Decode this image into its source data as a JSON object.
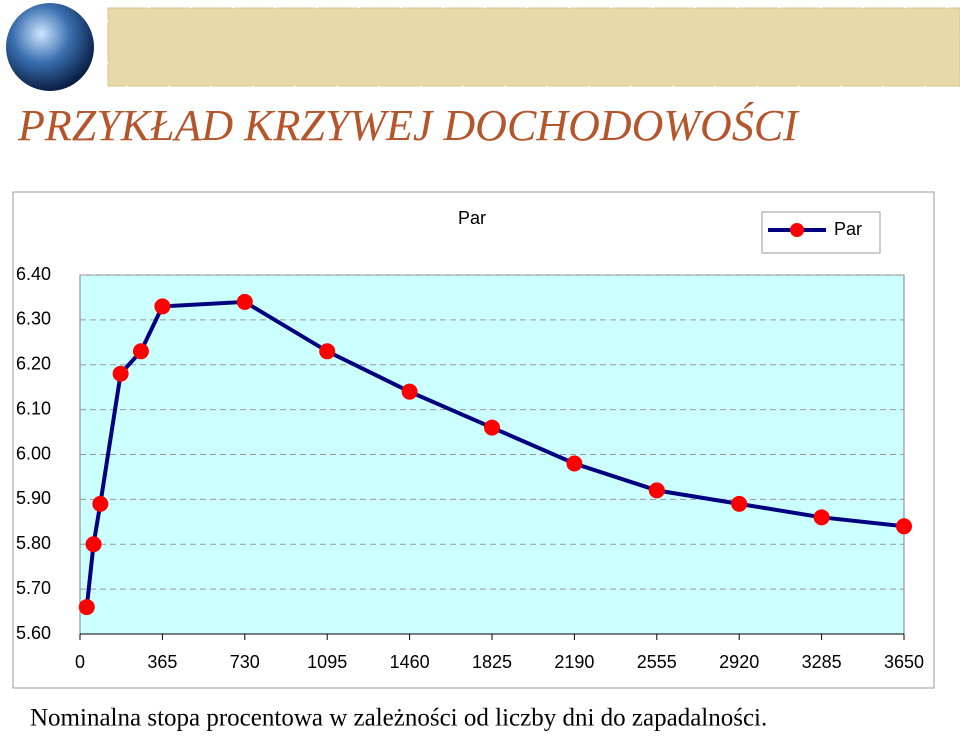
{
  "title": "PRZYKŁAD KRZYWEJ DOCHODOWOŚCI",
  "caption": "Nominalna stopa procentowa w zależności od liczby dni do zapadalności.",
  "chart_data": {
    "type": "line",
    "title": "Par",
    "x": [
      30,
      60,
      90,
      180,
      270,
      365,
      730,
      1095,
      1460,
      1825,
      2190,
      2555,
      2920,
      3285,
      3650
    ],
    "series": [
      {
        "name": "Par",
        "color": "#000080",
        "marker_color": "#ff0000",
        "values": [
          5.66,
          5.8,
          5.89,
          6.18,
          6.23,
          6.33,
          6.34,
          6.23,
          6.14,
          6.06,
          5.98,
          5.92,
          5.89,
          5.86,
          5.84
        ]
      }
    ],
    "xlim": [
      0,
      3650
    ],
    "xticks": [
      0,
      365,
      730,
      1095,
      1460,
      1825,
      2190,
      2555,
      2920,
      3285,
      3650
    ],
    "ylim": [
      5.6,
      6.4
    ],
    "yticks": [
      {
        "value": 5.6,
        "label": "5.60"
      },
      {
        "value": 5.7,
        "label": "5.70"
      },
      {
        "value": 5.8,
        "label": "5.80"
      },
      {
        "value": 5.9,
        "label": "5.90"
      },
      {
        "value": 6.0,
        "label": "6.00"
      },
      {
        "value": 6.1,
        "label": "6.10"
      },
      {
        "value": 6.2,
        "label": "6.20"
      },
      {
        "value": 6.3,
        "label": "6.30"
      },
      {
        "value": 6.4,
        "label": "6.40"
      }
    ],
    "grid": true,
    "legend": "top-right",
    "background": "#ccffff"
  }
}
